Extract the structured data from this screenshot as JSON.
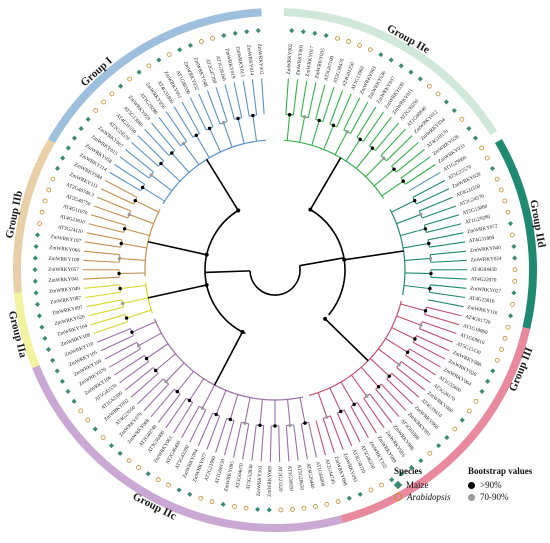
{
  "groups": [
    {
      "key": "g1",
      "label": "Group I",
      "color": "#9fbfdf",
      "branch": "#5b93c7"
    },
    {
      "key": "g2e",
      "label": "Group IIe",
      "color": "#cfe8d9",
      "branch": "#32b24a"
    },
    {
      "key": "g2d",
      "label": "Group IId",
      "color": "#1f8a70",
      "branch": "#1f8a70"
    },
    {
      "key": "g3",
      "label": "Group III",
      "color": "#e8899e",
      "branch": "#c4506b"
    },
    {
      "key": "g2c",
      "label": "Group IIc",
      "color": "#c9a8d4",
      "branch": "#9a6fa8"
    },
    {
      "key": "g2a",
      "label": "Group IIa",
      "color": "#f2f2a0",
      "branch": "#d7d72a"
    },
    {
      "key": "g2b",
      "label": "Group IIb",
      "color": "#e8cfa8",
      "branch": "#c4914e"
    }
  ],
  "leaves": [
    "ZmWRKY002",
    "ZmWRKY003",
    "ZmWRKY017",
    "ZmWRKY035",
    "AT5G07100",
    "AT2G38470",
    "AT4G01250",
    "AT1G13960",
    "ZmWRKY001",
    "ZmWRKY036",
    "ZmWRKY037",
    "ZmWRKY039",
    "ZmWRKY011",
    "AT2G30250",
    "AT1G80840",
    "ZmWRKY012",
    "ZmWRKY034",
    "AT4G18170",
    "ZmWRKY028",
    "ZmWRKY033",
    "AT1G29860",
    "AT5G22570",
    "ZmWRKY029",
    "AT4G31550",
    "AT2G24570",
    "AT5G13080",
    "AT1G29280",
    "ZmWRKY072",
    "AT4G31800",
    "ZmWRKY040",
    "ZmWRKY024",
    "AT4G04450",
    "AT4G22070",
    "ZmWRKY027",
    "AT4G23810",
    "ZmWRKY116",
    "AT4G01720",
    "AT1G18860",
    "AT1G69810",
    "AT5G15130",
    "ZmWRKY088",
    "ZmWRKY026",
    "ZmWRKY064",
    "AT1G55600",
    "AT5G26170",
    "ZmWRKY080",
    "AT4G39410",
    "ZmWRKY060",
    "ZmWRKY091",
    "AT3G01080",
    "ZmWRKY086",
    "ZmWRKY065",
    "ZmWRKY089",
    "ZmWRKY102",
    "AT5G46350",
    "AT3G58710",
    "ZmWRKY093",
    "ZmWRKY098",
    "AT2G44745",
    "AT1G64000",
    "AT4G26440",
    "AT5G28650",
    "AT1G30650",
    "AT2G23320",
    "ZmWRKY069",
    "ZmWRKY101",
    "AT5G52830",
    "AT3G04670",
    "ZmWRKY095",
    "AT1G68150",
    "AT2G21900",
    "ZmWRKY077",
    "ZmWRKY094",
    "AT5G43290",
    "AT2G46400",
    "ZmWRKY061",
    "AT3G56400",
    "AT2G40740",
    "ZmWRKY068",
    "ZmWRKY079",
    "AT4G23550",
    "ZmWRKY092",
    "AT1G62300",
    "AT5G41570",
    "ZmWRKY106",
    "ZmWRKY070",
    "ZmWRKY109",
    "ZmWRKY105",
    "ZmWRKY110",
    "ZmWRKY108",
    "ZmWRKY104",
    "ZmWRKY020",
    "ZmWRKY097",
    "ZmWRKY087",
    "ZmWRKY049",
    "ZmWRKY041",
    "ZmWRKY057",
    "ZmWRKY100",
    "ZmWRKY066",
    "ZmWRKY107",
    "AT3G24110",
    "AT4G23810",
    "AT4G11070",
    "AT2G40750",
    "AT2G40740.3",
    "ZmWRKY111",
    "ZmWRKY084",
    "ZmWRKY114",
    "ZmWRKY058",
    "ZmWRKY015",
    "ZmWRKY007",
    "AT2G24570",
    "AT4G31550",
    "AT5G13080",
    "ZmWRKY059",
    "AT1G29280",
    "ZmWRKY056",
    "AT4G31800",
    "ZmWRKY051",
    "AT1G80590",
    "ZmWRKY032",
    "ZmWRKY048",
    "AT2G47260",
    "AT1G26260",
    "ZmWRKY019",
    "ZmWRKY013",
    "ZmWRKY014",
    "ZmWRKY003"
  ],
  "legend": {
    "species_title": "Species",
    "species": [
      {
        "label": "Maize",
        "italic": false
      },
      {
        "label": "Arabidopsis",
        "italic": true
      }
    ],
    "bootstrap_title": "Bootstrap values",
    "bootstrap": [
      {
        "label": ">90%",
        "color": "#000000"
      },
      {
        "label": "70-90%",
        "color": "#9a9a9a"
      }
    ]
  }
}
